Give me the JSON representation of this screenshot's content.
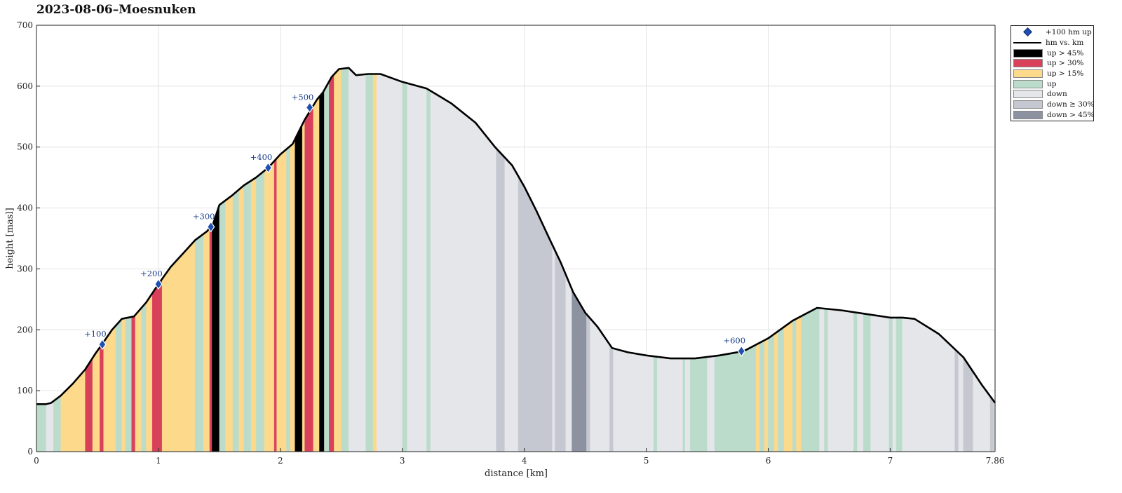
{
  "chart_data": {
    "type": "area",
    "title": "2023-08-06–Moesnuken",
    "xlabel": "distance [km]",
    "ylabel": "height [masl]",
    "xlim": [
      0,
      7.86
    ],
    "ylim": [
      0,
      700
    ],
    "x_ticks": [
      "0",
      "1",
      "2",
      "3",
      "4",
      "5",
      "6",
      "7",
      "7.86"
    ],
    "x_tick_values": [
      0,
      1,
      2,
      3,
      4,
      5,
      6,
      7,
      7.86
    ],
    "y_ticks": [
      "0",
      "100",
      "200",
      "300",
      "400",
      "500",
      "600",
      "700"
    ],
    "y_tick_values": [
      0,
      100,
      200,
      300,
      400,
      500,
      600,
      700
    ],
    "grid": true,
    "legend_position": "outside-right",
    "legend": [
      {
        "label": "+100 hm up",
        "kind": "marker",
        "color": "#1f4fb3"
      },
      {
        "label": "hm vs. km",
        "kind": "line",
        "color": "#000000"
      },
      {
        "label": "up > 45%",
        "kind": "fill",
        "color": "#000000"
      },
      {
        "label": "up > 30%",
        "kind": "fill",
        "color": "#d9405a"
      },
      {
        "label": "up > 15%",
        "kind": "fill",
        "color": "#fcd98b"
      },
      {
        "label": "up",
        "kind": "fill",
        "color": "#bcdccb"
      },
      {
        "label": "down",
        "kind": "fill",
        "color": "#e4e6ea"
      },
      {
        "label": "down ≥ 30%",
        "kind": "fill",
        "color": "#c5c8d0"
      },
      {
        "label": "down > 45%",
        "kind": "fill",
        "color": "#8c92a0"
      }
    ],
    "profile": {
      "x": [
        0,
        0.08,
        0.12,
        0.2,
        0.3,
        0.4,
        0.48,
        0.55,
        0.62,
        0.7,
        0.8,
        0.9,
        1.0,
        1.1,
        1.2,
        1.3,
        1.4,
        1.45,
        1.5,
        1.6,
        1.7,
        1.8,
        1.9,
        2.0,
        2.1,
        2.2,
        2.3,
        2.35,
        2.42,
        2.48,
        2.56,
        2.62,
        2.72,
        2.82,
        3.0,
        3.2,
        3.4,
        3.6,
        3.76,
        3.9,
        4.0,
        4.1,
        4.2,
        4.3,
        4.4,
        4.5,
        4.6,
        4.72,
        4.85,
        5.0,
        5.2,
        5.4,
        5.6,
        5.8,
        6.0,
        6.2,
        6.4,
        6.6,
        6.8,
        7.0,
        7.1,
        7.2,
        7.4,
        7.6,
        7.75,
        7.86
      ],
      "y": [
        78,
        78,
        80,
        92,
        112,
        135,
        160,
        180,
        200,
        218,
        222,
        245,
        275,
        303,
        325,
        347,
        362,
        375,
        405,
        420,
        437,
        450,
        466,
        488,
        505,
        545,
        578,
        590,
        615,
        628,
        630,
        618,
        620,
        620,
        607,
        596,
        572,
        540,
        500,
        470,
        435,
        395,
        352,
        310,
        262,
        228,
        205,
        170,
        163,
        158,
        153,
        153,
        158,
        165,
        186,
        215,
        236,
        232,
        226,
        220,
        220,
        218,
        193,
        155,
        110,
        80
      ]
    },
    "climb_markers": [
      {
        "label": "+100",
        "x": 0.54,
        "y": 176
      },
      {
        "label": "+200",
        "x": 1.0,
        "y": 275
      },
      {
        "label": "+300",
        "x": 1.43,
        "y": 369
      },
      {
        "label": "+400",
        "x": 1.9,
        "y": 466
      },
      {
        "label": "+500",
        "x": 2.24,
        "y": 565
      },
      {
        "label": "+600",
        "x": 5.78,
        "y": 165
      }
    ],
    "segments": [
      [
        0.0,
        0.08,
        "up"
      ],
      [
        0.08,
        0.14,
        "down"
      ],
      [
        0.14,
        0.2,
        "up"
      ],
      [
        0.2,
        0.4,
        "up15"
      ],
      [
        0.4,
        0.46,
        "up30"
      ],
      [
        0.46,
        0.52,
        "up15"
      ],
      [
        0.52,
        0.55,
        "up30"
      ],
      [
        0.55,
        0.65,
        "up15"
      ],
      [
        0.65,
        0.7,
        "up"
      ],
      [
        0.7,
        0.73,
        "up15"
      ],
      [
        0.73,
        0.78,
        "up"
      ],
      [
        0.78,
        0.81,
        "up30"
      ],
      [
        0.81,
        0.86,
        "up15"
      ],
      [
        0.86,
        0.9,
        "up"
      ],
      [
        0.9,
        0.95,
        "up15"
      ],
      [
        0.95,
        1.03,
        "up30"
      ],
      [
        1.03,
        1.07,
        "up15"
      ],
      [
        1.07,
        1.3,
        "up15"
      ],
      [
        1.3,
        1.37,
        "up"
      ],
      [
        1.37,
        1.42,
        "up15"
      ],
      [
        1.42,
        1.44,
        "up30"
      ],
      [
        1.44,
        1.5,
        "up45"
      ],
      [
        1.5,
        1.55,
        "up"
      ],
      [
        1.55,
        1.61,
        "up15"
      ],
      [
        1.61,
        1.66,
        "up"
      ],
      [
        1.66,
        1.7,
        "up15"
      ],
      [
        1.7,
        1.76,
        "up"
      ],
      [
        1.76,
        1.8,
        "up15"
      ],
      [
        1.8,
        1.87,
        "up"
      ],
      [
        1.87,
        1.95,
        "up15"
      ],
      [
        1.95,
        1.97,
        "up30"
      ],
      [
        1.97,
        2.05,
        "up15"
      ],
      [
        2.05,
        2.08,
        "up"
      ],
      [
        2.08,
        2.12,
        "up15"
      ],
      [
        2.12,
        2.18,
        "up45"
      ],
      [
        2.18,
        2.2,
        "up15"
      ],
      [
        2.2,
        2.27,
        "up30"
      ],
      [
        2.27,
        2.32,
        "up15"
      ],
      [
        2.32,
        2.36,
        "up45"
      ],
      [
        2.36,
        2.4,
        "up"
      ],
      [
        2.4,
        2.44,
        "up30"
      ],
      [
        2.44,
        2.5,
        "up15"
      ],
      [
        2.5,
        2.56,
        "up"
      ],
      [
        2.56,
        2.7,
        "down"
      ],
      [
        2.7,
        2.76,
        "up"
      ],
      [
        2.76,
        2.79,
        "up15"
      ],
      [
        2.79,
        3.0,
        "down"
      ],
      [
        3.0,
        3.04,
        "up"
      ],
      [
        3.04,
        3.2,
        "down"
      ],
      [
        3.2,
        3.23,
        "up"
      ],
      [
        3.23,
        3.77,
        "down"
      ],
      [
        3.77,
        3.84,
        "down30"
      ],
      [
        3.84,
        3.95,
        "down"
      ],
      [
        3.95,
        4.23,
        "down30"
      ],
      [
        4.23,
        4.25,
        "down"
      ],
      [
        4.25,
        4.34,
        "down30"
      ],
      [
        4.34,
        4.39,
        "down"
      ],
      [
        4.39,
        4.51,
        "down45"
      ],
      [
        4.51,
        4.54,
        "down30"
      ],
      [
        4.54,
        4.7,
        "down"
      ],
      [
        4.7,
        4.73,
        "down30"
      ],
      [
        4.73,
        5.06,
        "down"
      ],
      [
        5.06,
        5.09,
        "up"
      ],
      [
        5.09,
        5.3,
        "down"
      ],
      [
        5.3,
        5.32,
        "up"
      ],
      [
        5.32,
        5.36,
        "down"
      ],
      [
        5.36,
        5.5,
        "up"
      ],
      [
        5.5,
        5.56,
        "down"
      ],
      [
        5.56,
        5.9,
        "up"
      ],
      [
        5.9,
        5.93,
        "up15"
      ],
      [
        5.93,
        5.97,
        "up"
      ],
      [
        5.97,
        6.0,
        "up15"
      ],
      [
        6.0,
        6.05,
        "up"
      ],
      [
        6.05,
        6.08,
        "up15"
      ],
      [
        6.08,
        6.13,
        "up"
      ],
      [
        6.13,
        6.2,
        "up15"
      ],
      [
        6.2,
        6.23,
        "up"
      ],
      [
        6.23,
        6.27,
        "up15"
      ],
      [
        6.27,
        6.42,
        "up"
      ],
      [
        6.42,
        6.46,
        "down"
      ],
      [
        6.46,
        6.49,
        "up"
      ],
      [
        6.49,
        6.7,
        "down"
      ],
      [
        6.7,
        6.73,
        "up"
      ],
      [
        6.73,
        6.78,
        "down"
      ],
      [
        6.78,
        6.84,
        "up"
      ],
      [
        6.84,
        6.99,
        "down"
      ],
      [
        6.99,
        7.02,
        "up"
      ],
      [
        7.02,
        7.05,
        "down"
      ],
      [
        7.05,
        7.1,
        "up"
      ],
      [
        7.1,
        7.53,
        "down"
      ],
      [
        7.53,
        7.56,
        "down30"
      ],
      [
        7.56,
        7.6,
        "down"
      ],
      [
        7.6,
        7.68,
        "down30"
      ],
      [
        7.68,
        7.82,
        "down"
      ],
      [
        7.82,
        7.85,
        "down30"
      ],
      [
        7.85,
        7.86,
        "down"
      ]
    ],
    "segment_colors": {
      "up45": "#000000",
      "up30": "#d9405a",
      "up15": "#fcd98b",
      "up": "#bcdccb",
      "down": "#e4e6ea",
      "down30": "#c5c8d0",
      "down45": "#8c92a0"
    }
  }
}
